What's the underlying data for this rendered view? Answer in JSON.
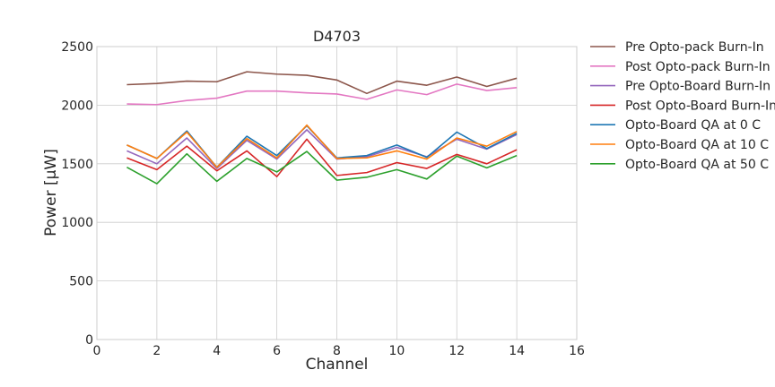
{
  "chart_data": {
    "type": "line",
    "title": "D4703",
    "xlabel": "Channel",
    "ylabel": "Power [μW]",
    "xlim": [
      0,
      16
    ],
    "ylim": [
      0,
      2500
    ],
    "xticks": [
      0,
      2,
      4,
      6,
      8,
      10,
      12,
      14,
      16
    ],
    "yticks": [
      0,
      500,
      1000,
      1500,
      2000,
      2500
    ],
    "grid": true,
    "legend_position": "outside-right",
    "x": [
      1,
      2,
      3,
      4,
      5,
      6,
      7,
      8,
      9,
      10,
      11,
      12,
      13,
      14
    ],
    "series": [
      {
        "name": "Pre Opto-pack Burn-In",
        "color": "#8c564b",
        "values": [
          2175,
          2185,
          2205,
          2200,
          2285,
          2265,
          2255,
          2215,
          2100,
          2205,
          2170,
          2240,
          2160,
          2230
        ]
      },
      {
        "name": "Post Opto-pack Burn-In",
        "color": "#e377c2",
        "values": [
          2010,
          2005,
          2040,
          2060,
          2120,
          2120,
          2105,
          2095,
          2050,
          2130,
          2090,
          2180,
          2125,
          2150
        ]
      },
      {
        "name": "Pre Opto-Board Burn-In",
        "color": "#9467bd",
        "values": [
          1610,
          1500,
          1720,
          1460,
          1700,
          1540,
          1790,
          1540,
          1560,
          1640,
          1560,
          1710,
          1625,
          1750
        ]
      },
      {
        "name": "Post Opto-Board Burn-In",
        "color": "#d62728",
        "values": [
          1550,
          1450,
          1650,
          1440,
          1610,
          1390,
          1710,
          1400,
          1425,
          1510,
          1460,
          1580,
          1500,
          1620
        ]
      },
      {
        "name": "Opto-Board QA at 0 C",
        "color": "#1f77b4",
        "values": [
          1660,
          1545,
          1780,
          1470,
          1735,
          1570,
          1825,
          1550,
          1570,
          1660,
          1555,
          1770,
          1630,
          1760
        ]
      },
      {
        "name": "Opto-Board QA at 10 C",
        "color": "#ff7f0e",
        "values": [
          1660,
          1545,
          1770,
          1470,
          1715,
          1550,
          1830,
          1545,
          1550,
          1610,
          1540,
          1720,
          1650,
          1775
        ]
      },
      {
        "name": "Opto-Board QA at 50 C",
        "color": "#2ca02c",
        "values": [
          1470,
          1330,
          1585,
          1350,
          1545,
          1430,
          1605,
          1360,
          1385,
          1450,
          1370,
          1565,
          1465,
          1570
        ]
      }
    ]
  }
}
